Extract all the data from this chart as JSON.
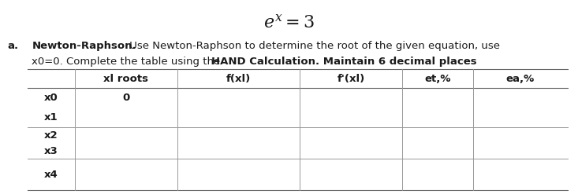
{
  "title": "$e^x = 3$",
  "title_fontsize": 16,
  "col_headers": [
    "xl roots",
    "f(xl)",
    "f’(xl)",
    "et,%",
    "ea,%"
  ],
  "col_headers_display": [
    "xl roots",
    "f(xl)",
    "f'(xl)",
    "et,%",
    "ea,%"
  ],
  "row_labels": [
    "x0",
    "x1",
    "x2",
    "x3",
    "x4"
  ],
  "x0_value": "0",
  "background_color": "#ffffff",
  "text_color": "#1a1a1a",
  "line_color": "#999999",
  "fontsize_body": 9.5,
  "fontsize_title": 16,
  "desc_line1_normal": " Use Newton-Raphson to determine the root of the given equation, use",
  "desc_line2_normal": "x0=0. Complete the table using the ",
  "desc_line2_bold": "HAND Calculation. Maintain 6 decimal places"
}
